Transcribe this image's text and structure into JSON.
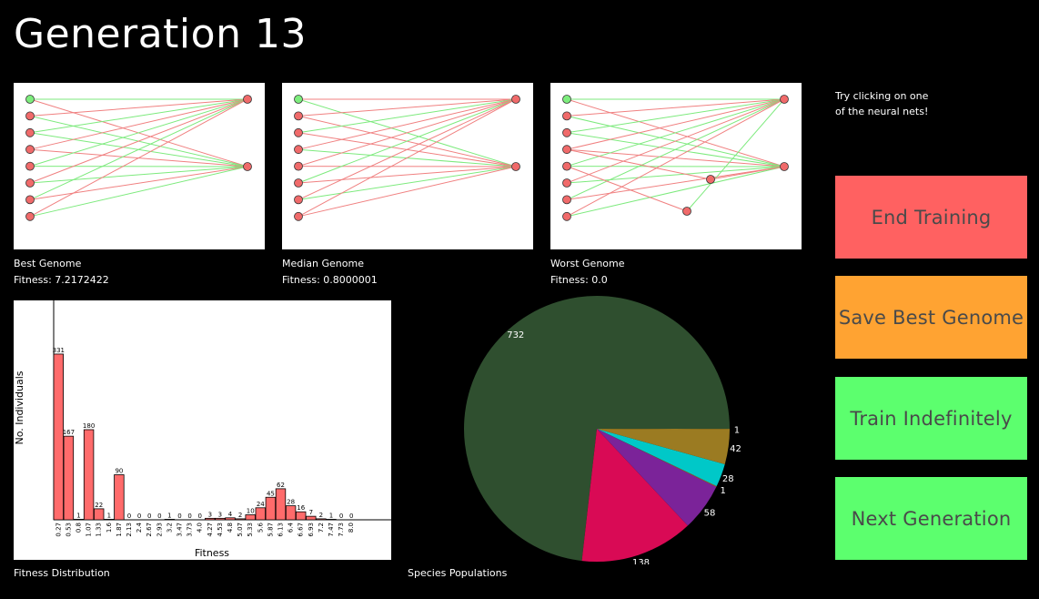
{
  "header": {
    "title": "Generation 13"
  },
  "hint": {
    "line1": "Try clicking on one",
    "line2": "of the neural nets!"
  },
  "networks": [
    {
      "label": "Best Genome",
      "fitness": "Fitness: 7.2172422"
    },
    {
      "label": "Median Genome",
      "fitness": "Fitness: 0.8000001"
    },
    {
      "label": "Worst Genome",
      "fitness": "Fitness: 0.0"
    }
  ],
  "buttons": {
    "end_training": "End Training",
    "save_best": "Save Best Genome",
    "train_indefinitely": "Train Indefinitely",
    "next_generation": "Next Generation"
  },
  "colors": {
    "end": "#ff6161",
    "save": "#ffa332",
    "train": "#5cff6e",
    "next": "#5cff6e",
    "bar": "#ff6b6b",
    "edge_pos": "#7dea7d",
    "edge_neg": "#f08080",
    "node": "#f06a6a",
    "node_active": "#7ded7d"
  },
  "fitness_distribution": {
    "caption": "Fitness Distribution"
  },
  "species": {
    "caption": "Species Populations"
  },
  "chart_data": [
    {
      "type": "bar",
      "title": "Fitness Distribution",
      "xlabel": "Fitness",
      "ylabel": "No. Individuals",
      "categories": [
        "0.27",
        "0.53",
        "0.8",
        "1.07",
        "1.33",
        "1.6",
        "1.87",
        "2.13",
        "2.4",
        "2.67",
        "2.93",
        "3.2",
        "3.47",
        "3.73",
        "4.0",
        "4.27",
        "4.53",
        "4.8",
        "5.07",
        "5.33",
        "5.6",
        "5.87",
        "6.13",
        "6.4",
        "6.67",
        "6.93",
        "7.2",
        "7.47",
        "7.73",
        "8.0"
      ],
      "values": [
        331,
        167,
        1,
        180,
        22,
        1,
        90,
        0,
        0,
        0,
        0,
        1,
        0,
        0,
        0,
        3,
        3,
        4,
        2,
        10,
        24,
        45,
        62,
        28,
        16,
        7,
        2,
        1,
        0,
        0
      ],
      "value_labels": [
        "331",
        "167",
        "1",
        "180",
        "22",
        "1",
        "90",
        "0",
        "0",
        "0",
        "0",
        "1",
        "0",
        "0",
        "0",
        "3",
        "3",
        "4",
        "2",
        "10",
        "24",
        "45",
        "62",
        "28",
        "16",
        "7",
        "2",
        "1",
        "0",
        "0"
      ],
      "ylim": [
        0,
        420
      ],
      "grid": false
    },
    {
      "type": "pie",
      "title": "Species Populations",
      "slices": [
        {
          "label": "732",
          "value": 732,
          "color": "#2f4f2f"
        },
        {
          "label": "138",
          "value": 138,
          "color": "#d90a55"
        },
        {
          "label": "58",
          "value": 58,
          "color": "#7b2399"
        },
        {
          "label": "1",
          "value": 1,
          "color": "#9b6b2c"
        },
        {
          "label": "28",
          "value": 28,
          "color": "#00c8c8"
        },
        {
          "label": "42",
          "value": 42,
          "color": "#9b7b22"
        },
        {
          "label": "1",
          "value": 1,
          "color": "#9b7b22"
        }
      ]
    }
  ]
}
